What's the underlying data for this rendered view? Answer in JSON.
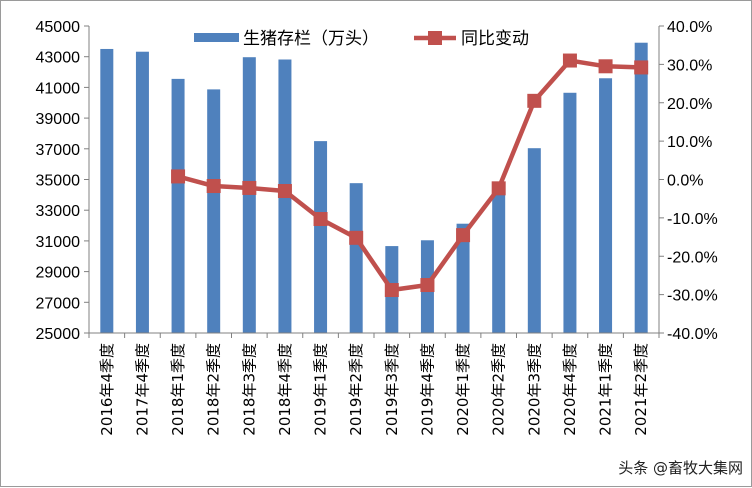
{
  "chart_data": {
    "type": "bar+line",
    "categories": [
      "2016年4季度",
      "2017年4季度",
      "2018年1季度",
      "2018年2季度",
      "2018年3季度",
      "2018年4季度",
      "2019年1季度",
      "2019年2季度",
      "2019年3季度",
      "2019年4季度",
      "2020年1季度",
      "2020年2季度",
      "2020年3季度",
      "2020年4季度",
      "2021年1季度",
      "2021年2季度"
    ],
    "series": [
      {
        "name": "生猪存栏（万头）",
        "type": "bar",
        "axis": "left",
        "color": "#4f81bd",
        "values": [
          43504,
          43325,
          41555,
          40870,
          42967,
          42817,
          37500,
          34761,
          30662,
          31041,
          32120,
          33991,
          37039,
          40650,
          41595,
          43911
        ]
      },
      {
        "name": "同比变动",
        "type": "line",
        "axis": "right",
        "color": "#c0504d",
        "values": [
          null,
          null,
          0.8,
          -1.7,
          -2.2,
          -3.0,
          -10.3,
          -15.2,
          -28.8,
          -27.5,
          -14.5,
          -2.3,
          20.5,
          31.0,
          29.5,
          29.2
        ]
      }
    ],
    "y_left": {
      "min": 25000,
      "max": 45000,
      "step": 2000,
      "tick_labels": [
        "25000",
        "27000",
        "29000",
        "31000",
        "33000",
        "35000",
        "37000",
        "39000",
        "41000",
        "43000",
        "45000"
      ]
    },
    "y_right": {
      "min": -40,
      "max": 40,
      "step": 10,
      "tick_labels": [
        "-40.0%",
        "-30.0%",
        "-20.0%",
        "-10.0%",
        "0.0%",
        "10.0%",
        "20.0%",
        "30.0%",
        "40.0%"
      ]
    },
    "grid": false,
    "legend_position": "top-center"
  },
  "watermark": "头条 @畜牧大集网"
}
